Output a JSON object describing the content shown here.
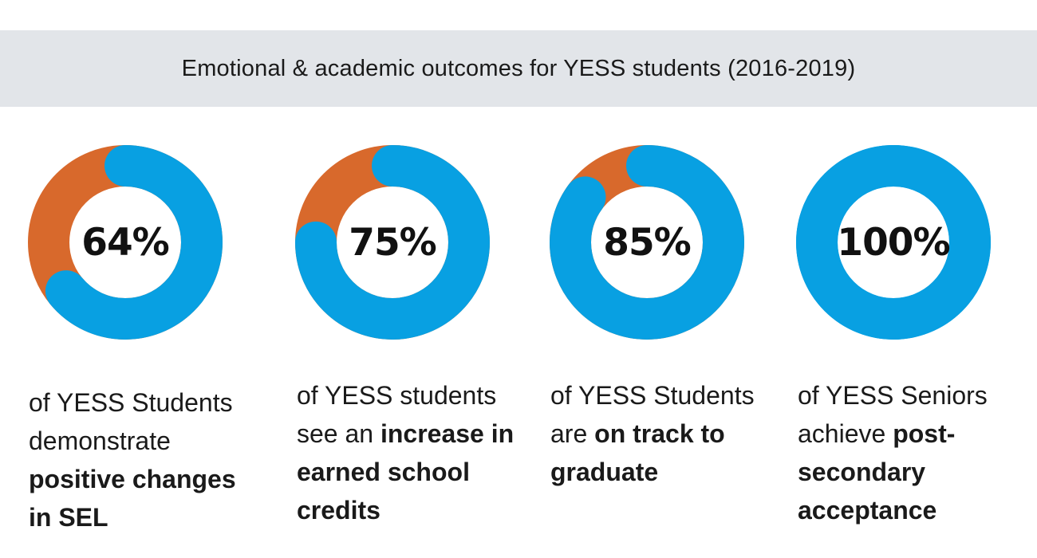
{
  "header": {
    "title": "Emotional & academic outcomes for YESS students (2016-2019)"
  },
  "colors": {
    "positive": "#08a0e2",
    "remainder": "#d8692c",
    "banner": "#e2e5e9"
  },
  "chart_data": [
    {
      "type": "pie",
      "label": "64%",
      "value": 64,
      "max": 100,
      "caption": {
        "plain": "of YESS Students demonstrate",
        "bold": "positive changes in SEL",
        "tail": ""
      }
    },
    {
      "type": "pie",
      "label": "75%",
      "value": 75,
      "max": 100,
      "caption": {
        "plain": "of YESS students see an",
        "bold": "increase in earned school credits",
        "tail": ""
      }
    },
    {
      "type": "pie",
      "label": "85%",
      "value": 85,
      "max": 100,
      "caption": {
        "plain": "of YESS Students are",
        "bold": "on track to graduate",
        "tail": ""
      }
    },
    {
      "type": "pie",
      "label": "100%",
      "value": 100,
      "max": 100,
      "caption": {
        "plain": "of YESS Seniors achieve",
        "bold": "post-secondary acceptance",
        "tail": ""
      }
    }
  ]
}
